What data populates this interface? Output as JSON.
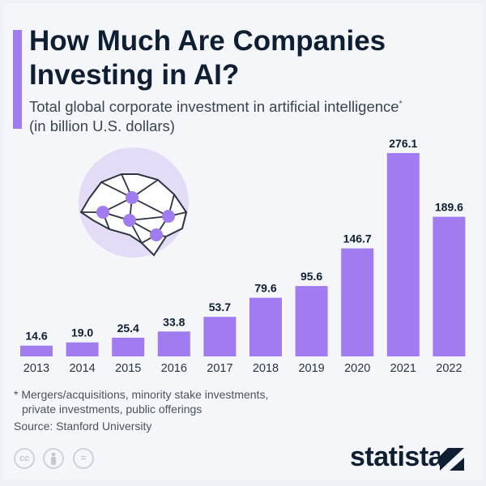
{
  "title": "How Much Are Companies Investing in AI?",
  "subtitle": "Total global corporate investment in artificial intelligence",
  "subtitle_marker": "*",
  "unit_note": "(in billion U.S. dollars)",
  "footnote_line1": "* Mergers/acquisitions, minority stake investments,",
  "footnote_line2": "private investments, public offerings",
  "source": "Source: Stanford University",
  "license_icons": [
    "cc-icon",
    "attribution-icon",
    "no-derivatives-icon"
  ],
  "license_text": {
    "cc": "cc",
    "nd": "="
  },
  "brand": "statista",
  "colors": {
    "bar": "#a07cf0",
    "text": "#0f1f33",
    "background": "#f4f6f9"
  },
  "chart_data": {
    "type": "bar",
    "categories": [
      "2013",
      "2014",
      "2015",
      "2016",
      "2017",
      "2018",
      "2019",
      "2020",
      "2021",
      "2022"
    ],
    "values": [
      14.6,
      19.0,
      25.4,
      33.8,
      53.7,
      79.6,
      95.6,
      146.7,
      276.1,
      189.6
    ],
    "labels": [
      "14.6",
      "19.0",
      "25.4",
      "33.8",
      "53.7",
      "79.6",
      "95.6",
      "146.7",
      "276.1",
      "189.6"
    ],
    "ylim": [
      0,
      276.1
    ],
    "grid": false,
    "data_labels": true
  }
}
